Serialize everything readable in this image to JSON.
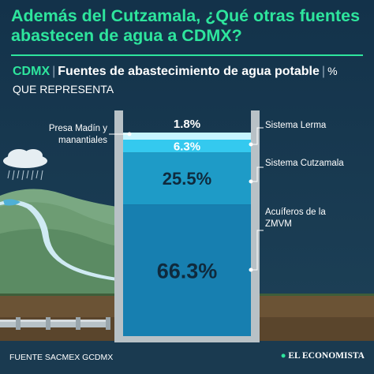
{
  "header": {
    "title": "Además del Cutzamala, ¿Qué otras fuentes abastecen de agua a CDMX?",
    "subtitle_brand": "CDMX",
    "subtitle_main": "Fuentes de abastecimiento de agua potable",
    "subtitle_unit": "% QUE REPRESENTA"
  },
  "chart_data": {
    "type": "bar",
    "stacked": true,
    "categories": [
      "Presa Madín y manantiales",
      "Sistema Lerma",
      "Sistema Cutzamala",
      "Acuíferos de la ZMVM"
    ],
    "values": [
      1.8,
      6.3,
      25.5,
      66.3
    ],
    "value_labels": [
      "1.8%",
      "6.3%",
      "25.5%",
      "66.3%"
    ],
    "unit": "%",
    "colors": [
      "#c6f4ff",
      "#34c9ef",
      "#1e9bc7",
      "#177fb0"
    ]
  },
  "labels": {
    "presa": "Presa Madín y manantiales",
    "lerma": "Sistema Lerma",
    "cutzamala": "Sistema Cutzamala",
    "acuiferos": "Acuíferos de la ZMVM"
  },
  "footer": {
    "source": "FUENTE SACMEX GCDMX",
    "logo": "EL ECONOMISTA"
  }
}
